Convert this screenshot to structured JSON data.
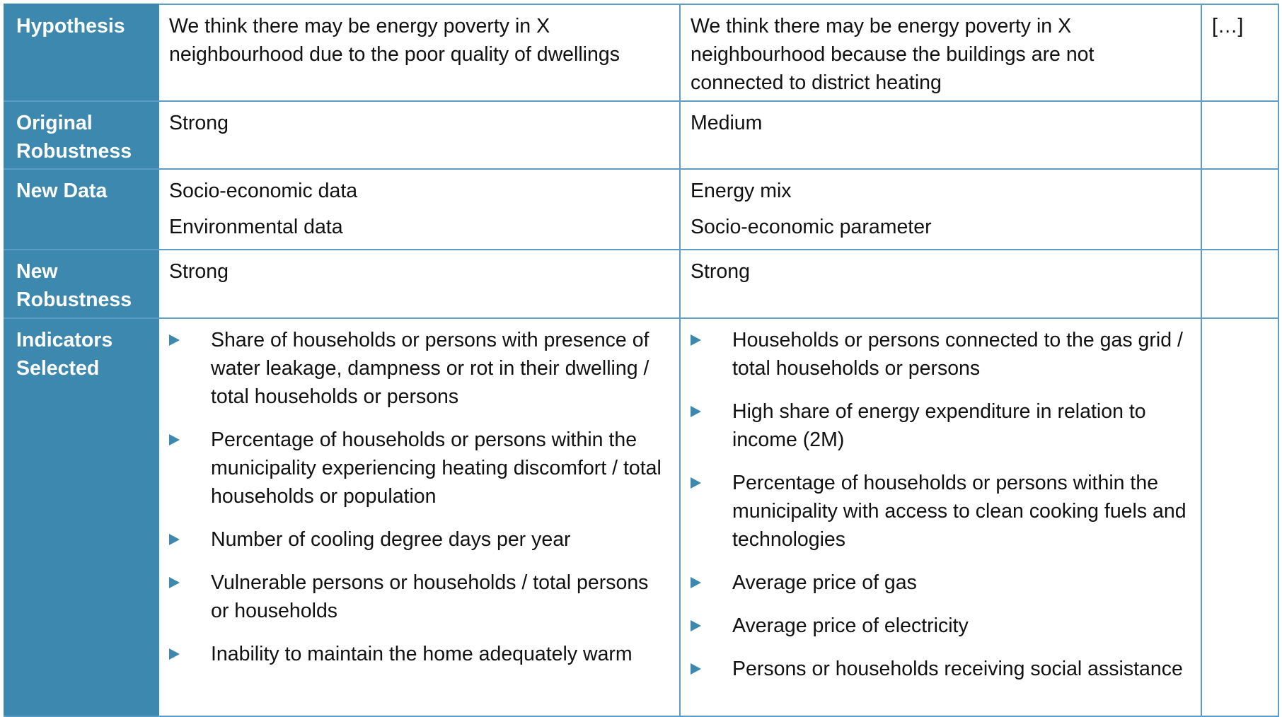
{
  "rows": {
    "hypothesis": {
      "label": "Hypothesis",
      "col1": "We think there may be energy poverty in X neighbourhood due to the poor quality of dwellings",
      "col2": "We think there may be energy poverty in X neighbourhood because the buildings are not connected to district heating",
      "col3": "[…]"
    },
    "original_robustness": {
      "label": "Original Robustness",
      "col1": "Strong",
      "col2": "Medium"
    },
    "new_data": {
      "label": "New Data",
      "col1": [
        "Socio-economic data",
        "Environmental data"
      ],
      "col2": [
        "Energy mix",
        "Socio-economic parameter"
      ]
    },
    "new_robustness": {
      "label": "New Robustness",
      "col1": "Strong",
      "col2": "Strong"
    },
    "indicators": {
      "label": "Indicators Selected",
      "col1": [
        "Share of households or persons with presence of water leakage, dampness or rot in their dwelling / total households or persons",
        "Percentage of households or persons within the municipality experiencing heating discomfort / total households or population",
        "Number of cooling degree days per year",
        "Vulnerable persons or households / total persons or households",
        "Inability to maintain the home adequately warm"
      ],
      "col2": [
        "Households or persons connected to the gas grid / total households or persons",
        "High share of energy expenditure in relation to income (2M)",
        "Percentage of households or persons within the municipality with access to clean cooking fuels and technologies",
        "Average price of gas",
        "Average price of electricity",
        "Persons or households receiving social assistance"
      ]
    }
  },
  "colors": {
    "header_bg": "#3d88ae",
    "border": "#5b9dc5",
    "bullet": "#3d88ae"
  },
  "icons": {
    "bullet": "triangle-right-icon"
  }
}
